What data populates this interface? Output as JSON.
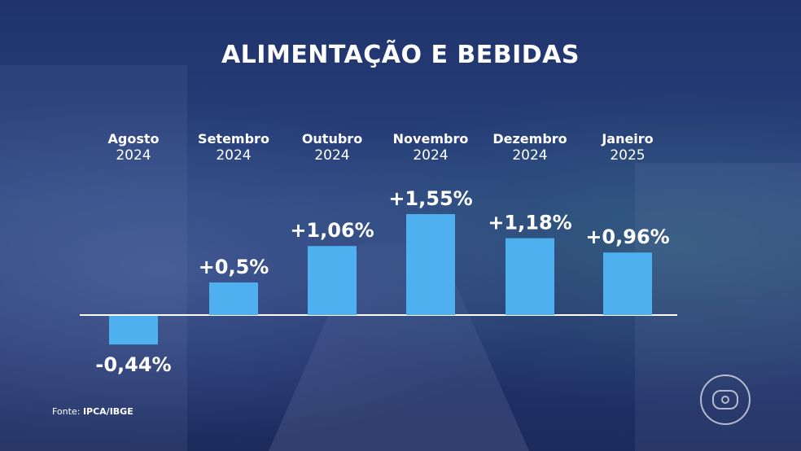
{
  "chart_data": {
    "type": "bar",
    "title": "ALIMENTAÇÃO E BEBIDAS",
    "categories": [
      {
        "month": "Agosto",
        "year": "2024"
      },
      {
        "month": "Setembro",
        "year": "2024"
      },
      {
        "month": "Outubro",
        "year": "2024"
      },
      {
        "month": "Novembro",
        "year": "2024"
      },
      {
        "month": "Dezembro",
        "year": "2024"
      },
      {
        "month": "Janeiro",
        "year": "2025"
      }
    ],
    "values": [
      -0.44,
      0.5,
      1.06,
      1.55,
      1.18,
      0.96
    ],
    "labels": [
      "-0,44%",
      "+0,5%",
      "+1,06%",
      "+1,55%",
      "+1,18%",
      "+0,96%"
    ],
    "bar_color": "#4fb0ef",
    "grid": false,
    "legend": "none"
  },
  "source": {
    "prefix": "Fonte:",
    "name": "IPCA/IBGE"
  },
  "logo": "globo-logo-icon"
}
